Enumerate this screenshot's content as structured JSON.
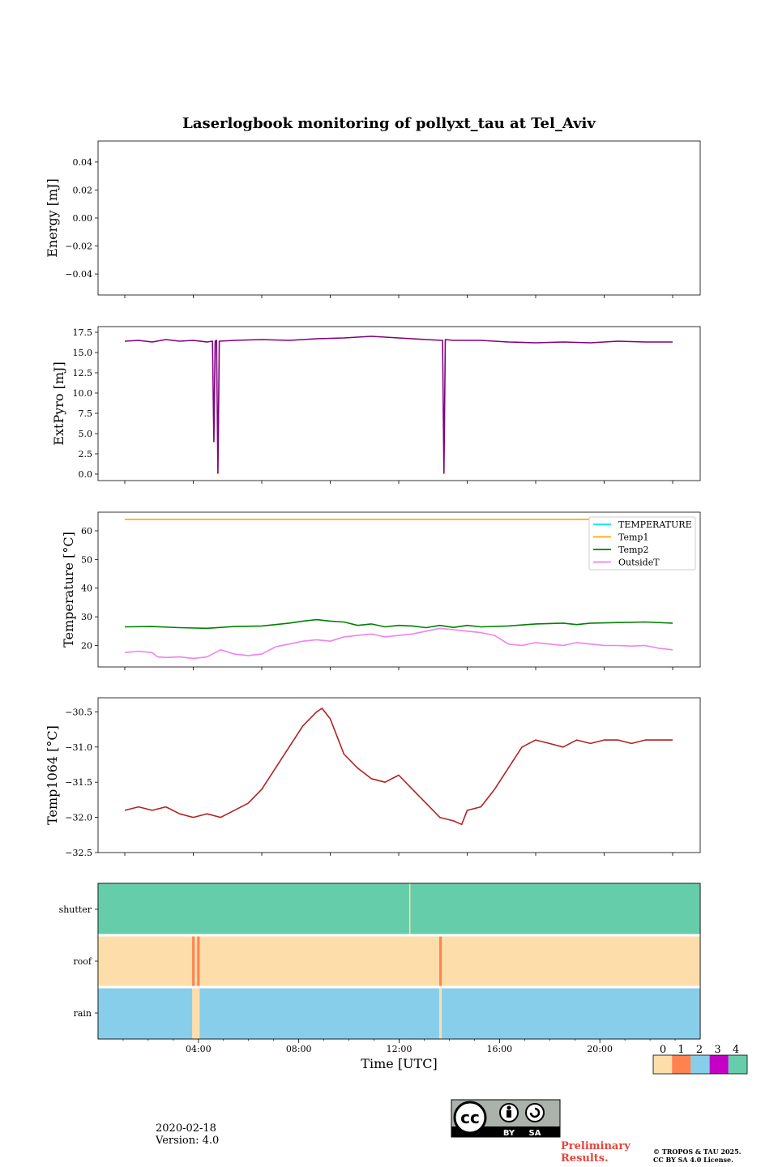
{
  "title": "Laserlogbook monitoring of pollyxt_tau at Tel_Aviv",
  "footer": {
    "date": "2020-02-18",
    "version": "Version: 4.0",
    "preliminary_line1": "Preliminary",
    "preliminary_line2": "Results.",
    "copyright_line1": "© TROPOS & TAU 2025.",
    "copyright_line2": "CC BY SA 4.0 License.",
    "cc_logo_text": "cc",
    "cc_by": "BY",
    "cc_sa": "SA"
  },
  "chart_data": [
    {
      "type": "line",
      "ylabel": "Energy [mJ]",
      "ylim": [
        -0.055,
        0.055
      ],
      "yticks": [
        0.04,
        0.02,
        0.0,
        -0.02,
        -0.04
      ],
      "ytick_labels": [
        "0.04",
        "0.02",
        "0.00",
        "−0.02",
        "−0.04"
      ],
      "series": []
    },
    {
      "type": "line",
      "ylabel": "ExtPyro [mJ]",
      "ylim": [
        -0.8,
        18.2
      ],
      "yticks": [
        17.5,
        15.0,
        12.5,
        10.0,
        7.5,
        5.0,
        2.5,
        0.0
      ],
      "ytick_labels": [
        "17.5",
        "15.0",
        "12.5",
        "10.0",
        "7.5",
        "5.0",
        "2.5",
        "0.0"
      ],
      "color": "#800080",
      "series": [
        {
          "color": "#800080",
          "points": [
            [
              0.0,
              16.4
            ],
            [
              0.5,
              16.5
            ],
            [
              1.0,
              16.3
            ],
            [
              1.5,
              16.6
            ],
            [
              2.0,
              16.4
            ],
            [
              2.5,
              16.5
            ],
            [
              3.0,
              16.3
            ],
            [
              3.2,
              16.4
            ],
            [
              3.25,
              4.0
            ],
            [
              3.3,
              16.4
            ],
            [
              3.35,
              16.5
            ],
            [
              3.4,
              0.1
            ],
            [
              3.45,
              16.4
            ],
            [
              4.0,
              16.5
            ],
            [
              5.0,
              16.6
            ],
            [
              6.0,
              16.5
            ],
            [
              7.0,
              16.7
            ],
            [
              8.0,
              16.8
            ],
            [
              9.0,
              17.0
            ],
            [
              10.0,
              16.8
            ],
            [
              11.0,
              16.6
            ],
            [
              11.6,
              16.5
            ],
            [
              11.65,
              0.1
            ],
            [
              11.7,
              16.6
            ],
            [
              12.0,
              16.5
            ],
            [
              13.0,
              16.5
            ],
            [
              14.0,
              16.3
            ],
            [
              15.0,
              16.2
            ],
            [
              16.0,
              16.3
            ],
            [
              17.0,
              16.2
            ],
            [
              18.0,
              16.4
            ],
            [
              19.0,
              16.3
            ],
            [
              20.0,
              16.3
            ]
          ]
        }
      ]
    },
    {
      "type": "line",
      "ylabel": "Temperature [°C]",
      "ylim": [
        12.5,
        66.5
      ],
      "yticks": [
        60,
        50,
        40,
        30,
        20
      ],
      "ytick_labels": [
        "60",
        "50",
        "40",
        "30",
        "20"
      ],
      "legend_placement": "top-right",
      "legend": [
        "TEMPERATURE",
        "Temp1",
        "Temp2",
        "OutsideT"
      ],
      "series": [
        {
          "name": "TEMPERATURE",
          "color": "#00e5ee",
          "points": []
        },
        {
          "name": "Temp1",
          "color": "#ffa500",
          "points": [
            [
              0.0,
              64.0
            ],
            [
              20.0,
              64.0
            ]
          ]
        },
        {
          "name": "Temp2",
          "color": "#008000",
          "points": [
            [
              0.0,
              26.5
            ],
            [
              1.0,
              26.6
            ],
            [
              2.0,
              26.2
            ],
            [
              3.0,
              26.0
            ],
            [
              4.0,
              26.6
            ],
            [
              5.0,
              26.8
            ],
            [
              6.0,
              27.8
            ],
            [
              6.5,
              28.5
            ],
            [
              7.0,
              29.0
            ],
            [
              7.5,
              28.5
            ],
            [
              8.0,
              28.2
            ],
            [
              8.5,
              27.0
            ],
            [
              9.0,
              27.5
            ],
            [
              9.5,
              26.5
            ],
            [
              10.0,
              27.0
            ],
            [
              10.5,
              26.8
            ],
            [
              11.0,
              26.2
            ],
            [
              11.5,
              27.0
            ],
            [
              12.0,
              26.3
            ],
            [
              12.5,
              27.0
            ],
            [
              13.0,
              26.5
            ],
            [
              14.0,
              26.8
            ],
            [
              15.0,
              27.5
            ],
            [
              16.0,
              27.8
            ],
            [
              16.5,
              27.3
            ],
            [
              17.0,
              27.8
            ],
            [
              18.0,
              28.0
            ],
            [
              19.0,
              28.2
            ],
            [
              20.0,
              27.8
            ]
          ]
        },
        {
          "name": "OutsideT",
          "color": "#ee82ee",
          "points": [
            [
              0.0,
              17.5
            ],
            [
              0.5,
              18.0
            ],
            [
              1.0,
              17.5
            ],
            [
              1.2,
              16.0
            ],
            [
              1.5,
              15.8
            ],
            [
              2.0,
              16.0
            ],
            [
              2.5,
              15.5
            ],
            [
              3.0,
              16.0
            ],
            [
              3.5,
              18.5
            ],
            [
              4.0,
              17.0
            ],
            [
              4.5,
              16.5
            ],
            [
              5.0,
              17.0
            ],
            [
              5.5,
              19.5
            ],
            [
              6.0,
              20.5
            ],
            [
              6.5,
              21.5
            ],
            [
              7.0,
              22.0
            ],
            [
              7.5,
              21.5
            ],
            [
              8.0,
              23.0
            ],
            [
              8.5,
              23.5
            ],
            [
              9.0,
              24.0
            ],
            [
              9.5,
              23.0
            ],
            [
              10.0,
              23.5
            ],
            [
              10.5,
              24.0
            ],
            [
              11.0,
              25.0
            ],
            [
              11.5,
              26.0
            ],
            [
              12.0,
              25.5
            ],
            [
              12.5,
              25.0
            ],
            [
              13.0,
              24.5
            ],
            [
              13.5,
              23.5
            ],
            [
              14.0,
              20.5
            ],
            [
              14.5,
              20.0
            ],
            [
              15.0,
              21.0
            ],
            [
              15.5,
              20.5
            ],
            [
              16.0,
              20.0
            ],
            [
              16.5,
              21.0
            ],
            [
              17.0,
              20.5
            ],
            [
              17.5,
              20.0
            ],
            [
              18.0,
              20.0
            ],
            [
              18.5,
              19.8
            ],
            [
              19.0,
              20.0
            ],
            [
              19.5,
              19.0
            ],
            [
              20.0,
              18.5
            ]
          ]
        }
      ]
    },
    {
      "type": "line",
      "ylabel": "Temp1064 [°C]",
      "ylim": [
        -32.5,
        -30.3
      ],
      "yticks": [
        -30.5,
        -31.0,
        -31.5,
        -32.0,
        -32.5
      ],
      "ytick_labels": [
        "−30.5",
        "−31.0",
        "−31.5",
        "−32.0",
        "−32.5"
      ],
      "series": [
        {
          "color": "#b22222",
          "points": [
            [
              0.0,
              -31.9
            ],
            [
              0.5,
              -31.85
            ],
            [
              1.0,
              -31.9
            ],
            [
              1.5,
              -31.85
            ],
            [
              2.0,
              -31.95
            ],
            [
              2.5,
              -32.0
            ],
            [
              3.0,
              -31.95
            ],
            [
              3.5,
              -32.0
            ],
            [
              4.0,
              -31.9
            ],
            [
              4.5,
              -31.8
            ],
            [
              5.0,
              -31.6
            ],
            [
              5.5,
              -31.3
            ],
            [
              6.0,
              -31.0
            ],
            [
              6.5,
              -30.7
            ],
            [
              7.0,
              -30.5
            ],
            [
              7.2,
              -30.45
            ],
            [
              7.5,
              -30.6
            ],
            [
              7.8,
              -30.9
            ],
            [
              8.0,
              -31.1
            ],
            [
              8.5,
              -31.3
            ],
            [
              9.0,
              -31.45
            ],
            [
              9.5,
              -31.5
            ],
            [
              10.0,
              -31.4
            ],
            [
              10.5,
              -31.6
            ],
            [
              11.0,
              -31.8
            ],
            [
              11.5,
              -32.0
            ],
            [
              12.0,
              -32.05
            ],
            [
              12.3,
              -32.1
            ],
            [
              12.5,
              -31.9
            ],
            [
              13.0,
              -31.85
            ],
            [
              13.5,
              -31.6
            ],
            [
              14.0,
              -31.3
            ],
            [
              14.5,
              -31.0
            ],
            [
              15.0,
              -30.9
            ],
            [
              15.5,
              -30.95
            ],
            [
              16.0,
              -31.0
            ],
            [
              16.5,
              -30.9
            ],
            [
              17.0,
              -30.95
            ],
            [
              17.5,
              -30.9
            ],
            [
              18.0,
              -30.9
            ],
            [
              18.5,
              -30.95
            ],
            [
              19.0,
              -30.9
            ],
            [
              19.5,
              -30.9
            ],
            [
              20.0,
              -30.9
            ]
          ]
        }
      ]
    },
    {
      "type": "heatmap",
      "xlabel": "Time [UTC]",
      "xticks": [
        4,
        8,
        12,
        16,
        20
      ],
      "xtick_labels": [
        "04:00",
        "08:00",
        "12:00",
        "16:00",
        "20:00"
      ],
      "xlim": [
        0.0,
        24.0
      ],
      "rows": [
        "shutter",
        "roof",
        "rain"
      ],
      "default_values": {
        "shutter": 4,
        "roof": 0,
        "rain": 2
      },
      "events": [
        {
          "row": "shutter",
          "start": 12.4,
          "end": 12.45,
          "value": 0
        },
        {
          "row": "roof",
          "start": 3.75,
          "end": 3.85,
          "value": 1
        },
        {
          "row": "roof",
          "start": 3.95,
          "end": 4.05,
          "value": 1
        },
        {
          "row": "roof",
          "start": 13.6,
          "end": 13.7,
          "value": 1
        },
        {
          "row": "rain",
          "start": 3.75,
          "end": 4.05,
          "value": 0
        },
        {
          "row": "rain",
          "start": 13.6,
          "end": 13.7,
          "value": 0
        }
      ],
      "colorbar": {
        "labels": [
          "0",
          "1",
          "2",
          "3",
          "4"
        ],
        "colors": [
          "#fddeab",
          "#fe8350",
          "#87ceeb",
          "#c400c4",
          "#66cdaa"
        ]
      }
    }
  ]
}
